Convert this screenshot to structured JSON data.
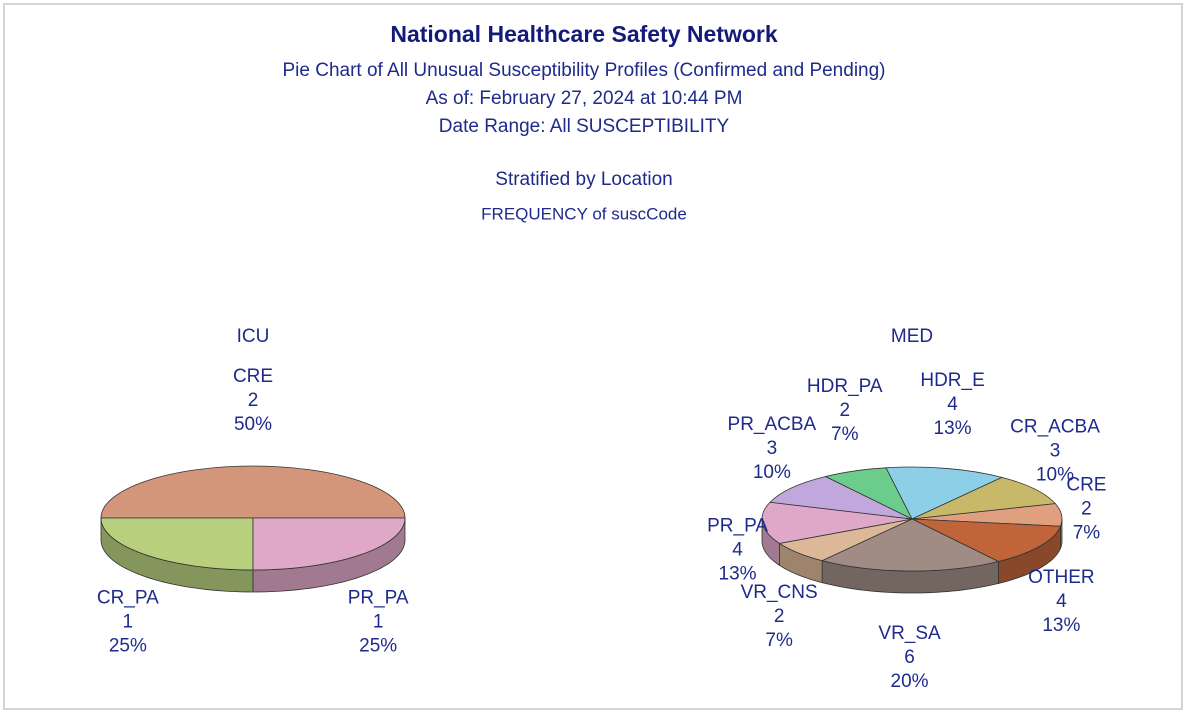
{
  "header": {
    "title": "National Healthcare Safety Network",
    "subtitle": "Pie Chart of All Unusual Susceptibility Profiles (Confirmed and Pending)",
    "as_of": "As of:  February 27, 2024 at 10:44 PM",
    "date_range": "Date Range:  All SUSCEPTIBILITY",
    "stratified": "Stratified by Location",
    "frequency": "FREQUENCY of suscCode"
  },
  "chart_data": [
    {
      "type": "pie",
      "title": "ICU",
      "categories": [
        "CRE",
        "CR_PA",
        "PR_PA"
      ],
      "counts": [
        2,
        1,
        1
      ],
      "values": [
        50,
        25,
        25
      ],
      "value_labels": [
        "50%",
        "25%",
        "25%"
      ],
      "colors": [
        "#d4967a",
        "#b8d07e",
        "#e0a8c8"
      ]
    },
    {
      "type": "pie",
      "title": "MED",
      "categories": [
        "HDR_E",
        "CR_ACBA",
        "CRE",
        "OTHER",
        "VR_SA",
        "VR_CNS",
        "PR_PA",
        "PR_ACBA",
        "HDR_PA"
      ],
      "counts": [
        4,
        3,
        2,
        4,
        6,
        2,
        4,
        3,
        2
      ],
      "values": [
        13,
        10,
        7,
        13,
        20,
        7,
        13,
        10,
        7
      ],
      "value_labels": [
        "13%",
        "10%",
        "7%",
        "13%",
        "20%",
        "7%",
        "13%",
        "10%",
        "7%"
      ],
      "colors": [
        "#8ecfe8",
        "#c8b86a",
        "#e0a080",
        "#c0643a",
        "#a08c84",
        "#dcb898",
        "#e0a8c8",
        "#c0a8dc",
        "#6ccc8c"
      ]
    }
  ]
}
